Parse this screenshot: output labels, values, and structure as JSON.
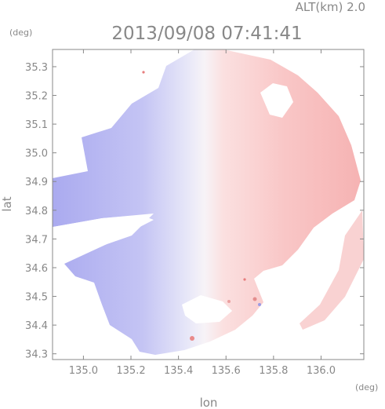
{
  "header": {
    "altitude_label": "ALT(km) 2.0",
    "timestamp": "2013/09/08 07:41:41"
  },
  "chart_data": {
    "type": "heatmap",
    "title": "2013/09/08 07:41:41",
    "annotation": "ALT(km) 2.0",
    "xlabel": "lon",
    "ylabel": "lat",
    "xunit": "(deg)",
    "yunit": "(deg)",
    "xlim": [
      134.87,
      136.18
    ],
    "ylim": [
      34.28,
      35.36
    ],
    "x_ticks": [
      135.0,
      135.2,
      135.4,
      135.6,
      135.8,
      136.0
    ],
    "x_tick_labels": [
      "135.0",
      "135.2",
      "135.4",
      "135.6",
      "135.8",
      "136.0"
    ],
    "y_ticks": [
      34.3,
      34.4,
      34.5,
      34.6,
      34.7,
      34.8,
      34.9,
      35.0,
      35.1,
      35.2,
      35.3
    ],
    "y_tick_labels": [
      "34.3",
      "34.4",
      "34.5",
      "34.6",
      "34.7",
      "34.8",
      "34.9",
      "35.0",
      "35.1",
      "35.2",
      "35.3"
    ],
    "radar_center": {
      "lon": 135.52,
      "lat": 34.82
    },
    "colors": {
      "toward": "#b4b4f2",
      "away": "#f8bcbc",
      "neutral": "#f6f4fa",
      "frame": "#888888"
    },
    "grid": false,
    "legend": "none"
  }
}
